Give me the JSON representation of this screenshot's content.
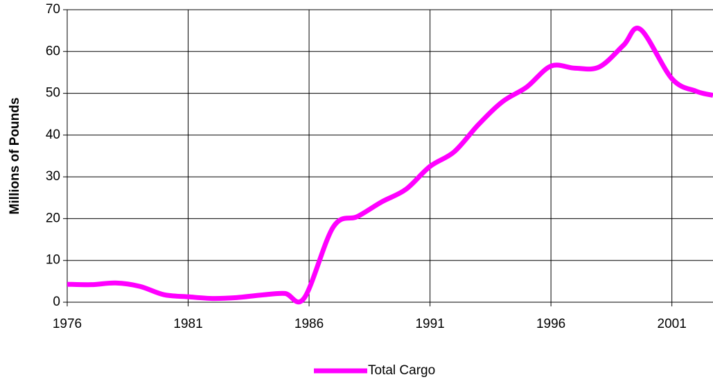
{
  "chart_data": {
    "type": "line",
    "y_label": "Millions of Pounds",
    "x": [
      1976,
      1977,
      1978,
      1979,
      1980,
      1981,
      1982,
      1983,
      1984,
      1985,
      1985.8,
      1987,
      1988,
      1989,
      1990,
      1991,
      1992,
      1993,
      1994,
      1995,
      1996,
      1997,
      1998,
      1999,
      1999.7,
      2001,
      2002,
      2002.7
    ],
    "series": [
      {
        "name": "Total Cargo",
        "color": "#ff00ff",
        "values": [
          4.3,
          4.2,
          4.6,
          3.8,
          1.8,
          1.3,
          0.9,
          1.1,
          1.7,
          2.1,
          1.0,
          18,
          20.5,
          24,
          27,
          32.5,
          36,
          42.5,
          48,
          51.5,
          56.5,
          56,
          56.3,
          61.5,
          65.3,
          53.5,
          50.5,
          49.5
        ]
      }
    ],
    "xlim": [
      1976,
      2002.7
    ],
    "xticks": [
      1976,
      1981,
      1986,
      1991,
      1996,
      2001
    ],
    "ylim": [
      0,
      70
    ],
    "yticks": [
      0,
      10,
      20,
      30,
      40,
      50,
      60,
      70
    ],
    "grid": true,
    "legend": "bottom"
  }
}
